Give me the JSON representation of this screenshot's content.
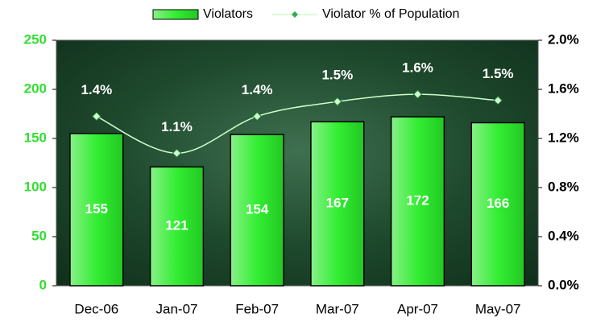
{
  "chart_data": {
    "type": "bar",
    "categories": [
      "Dec-06",
      "Jan-07",
      "Feb-07",
      "Mar-07",
      "Apr-07",
      "May-07"
    ],
    "series": [
      {
        "name": "Violators",
        "type": "bar",
        "color": "#33ee33",
        "values": [
          155,
          121,
          154,
          167,
          172,
          166
        ]
      },
      {
        "name": "Violator % of Population",
        "type": "line",
        "axis": "y2",
        "color": "#ccffcc",
        "values": [
          1.38,
          1.08,
          1.38,
          1.5,
          1.56,
          1.51
        ],
        "value_labels": [
          "1.4%",
          "1.1%",
          "1.4%",
          "1.5%",
          "1.6%",
          "1.5%"
        ]
      }
    ],
    "ylim": [
      0,
      250
    ],
    "yticks": [
      0,
      50,
      100,
      150,
      200,
      250
    ],
    "y2lim": [
      0,
      2
    ],
    "y2ticks": [
      {
        "value": 0,
        "label": "0.0%"
      },
      {
        "value": 0.4,
        "label": "0.4%"
      },
      {
        "value": 0.8,
        "label": "0.8%"
      },
      {
        "value": 1.2,
        "label": "1.2%"
      },
      {
        "value": 1.6,
        "label": "1.6%"
      },
      {
        "value": 2,
        "label": "2.0%"
      }
    ],
    "legend": "top"
  }
}
